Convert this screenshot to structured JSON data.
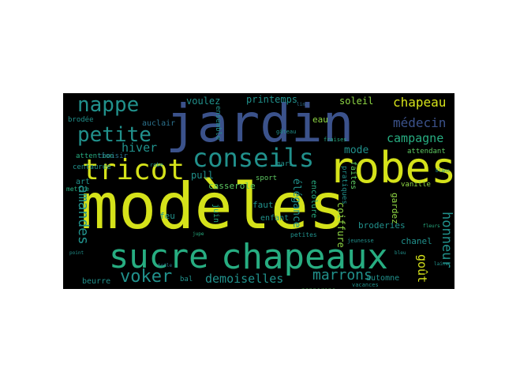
{
  "background_color": "#000000",
  "page_background": "#ffffff",
  "palette": [
    "#d5e21a",
    "#27ad81",
    "#21918c",
    "#3b528b",
    "#440154",
    "#5ec962",
    "#2c728e",
    "#8fd744"
  ],
  "words": {
    "modeles": "modèles",
    "jardin": "jardin",
    "robes": "robes",
    "chapeaux": "chapeaux",
    "sucre": "sucre",
    "tricot": "tricot",
    "conseils": "conseils",
    "nappe": "nappe",
    "petite": "petite",
    "voker": "voker",
    "medecin": "médecin",
    "chapeau": "chapeau",
    "campagne": "campagne",
    "hiver": "hiver",
    "amandes": "amandes",
    "demoiselles": "demoiselles",
    "marrons": "marrons",
    "gout": "goût",
    "honneur": "honneur",
    "mode": "mode",
    "elegance": "élégance",
    "printemps": "printemps",
    "voulez": "voulez",
    "soleil": "soleil",
    "broderies": "broderies",
    "pull": "pull",
    "casserole": "casserole",
    "feu": "feu",
    "eau": "eau",
    "faut": "faut",
    "enfant": "enfant",
    "coiffure": "coiffure",
    "chanel": "chanel",
    "automne": "automne",
    "beurre": "beurre",
    "attention": "attention",
    "choisir": "choisir",
    "auclair": "auclair",
    "brodee": "brodée",
    "centauree": "centaurée",
    "sport": "sport",
    "mari": "mari",
    "petites": "petites",
    "encolure": "encolure",
    "attendant": "attendant",
    "faites": "faites",
    "pratiques": "pratiques",
    "gardez": "gardez",
    "vanille": "vanille",
    "napperons": "napperons",
    "vacances": "vacances",
    "bal": "bal",
    "art": "art",
    "mettre": "mettre",
    "juin": "juin",
    "jeunesse": "jeunesse",
    "robe": "robe",
    "fraises": "fraises",
    "gateau": "gâteau",
    "ensemble": "ensemble",
    "lin": "lin",
    "blanc": "blanc",
    "jupe": "jupe",
    "bleu": "bleu",
    "toile": "toile",
    "laine": "laine",
    "point": "point",
    "fleurs": "fleurs"
  }
}
